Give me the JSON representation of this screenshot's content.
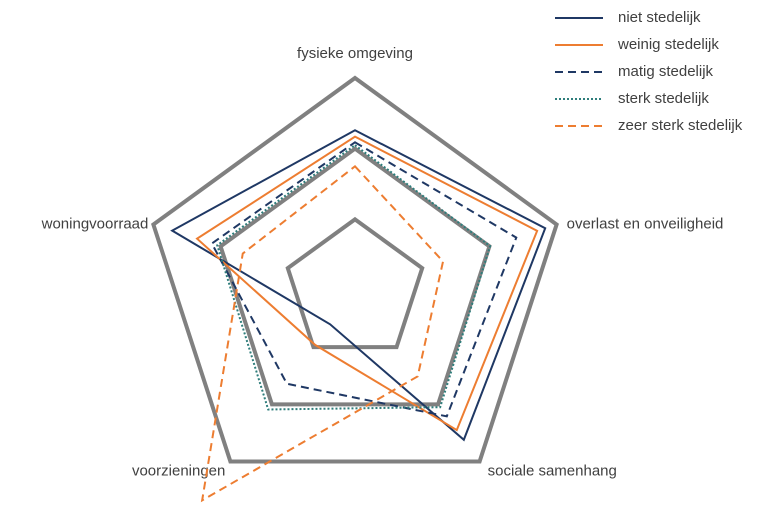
{
  "chart_data": {
    "type": "radar",
    "categories": [
      "fysieke omgeving",
      "overlast en onveiligheid",
      "sociale samenhang",
      "voorzieningen",
      "woningvoorraad"
    ],
    "rlim": [
      0,
      3
    ],
    "rticks": [
      1,
      2,
      3
    ],
    "grid_color": "#808080",
    "series": [
      {
        "name": "niet stedelijk",
        "color": "#1f3864",
        "dash": "solid",
        "values": [
          2.26,
          2.83,
          2.62,
          0.6,
          2.72
        ]
      },
      {
        "name": "weinig stedelijk",
        "color": "#ed7d31",
        "dash": "solid",
        "values": [
          2.17,
          2.71,
          2.45,
          0.96,
          2.35
        ]
      },
      {
        "name": "matig stedelijk",
        "color": "#1f3864",
        "dash": "dashed",
        "values": [
          2.09,
          2.4,
          2.21,
          1.64,
          2.13
        ]
      },
      {
        "name": "sterk stedelijk",
        "color": "#2e7d7b",
        "dash": "dotted",
        "values": [
          2.05,
          2.01,
          2.05,
          2.09,
          2.05
        ]
      },
      {
        "name": "zeer sterk stedelijk",
        "color": "#ed7d31",
        "dash": "dashed",
        "values": [
          1.75,
          1.31,
          1.51,
          3.68,
          1.67
        ]
      }
    ],
    "legend": "top-right"
  }
}
